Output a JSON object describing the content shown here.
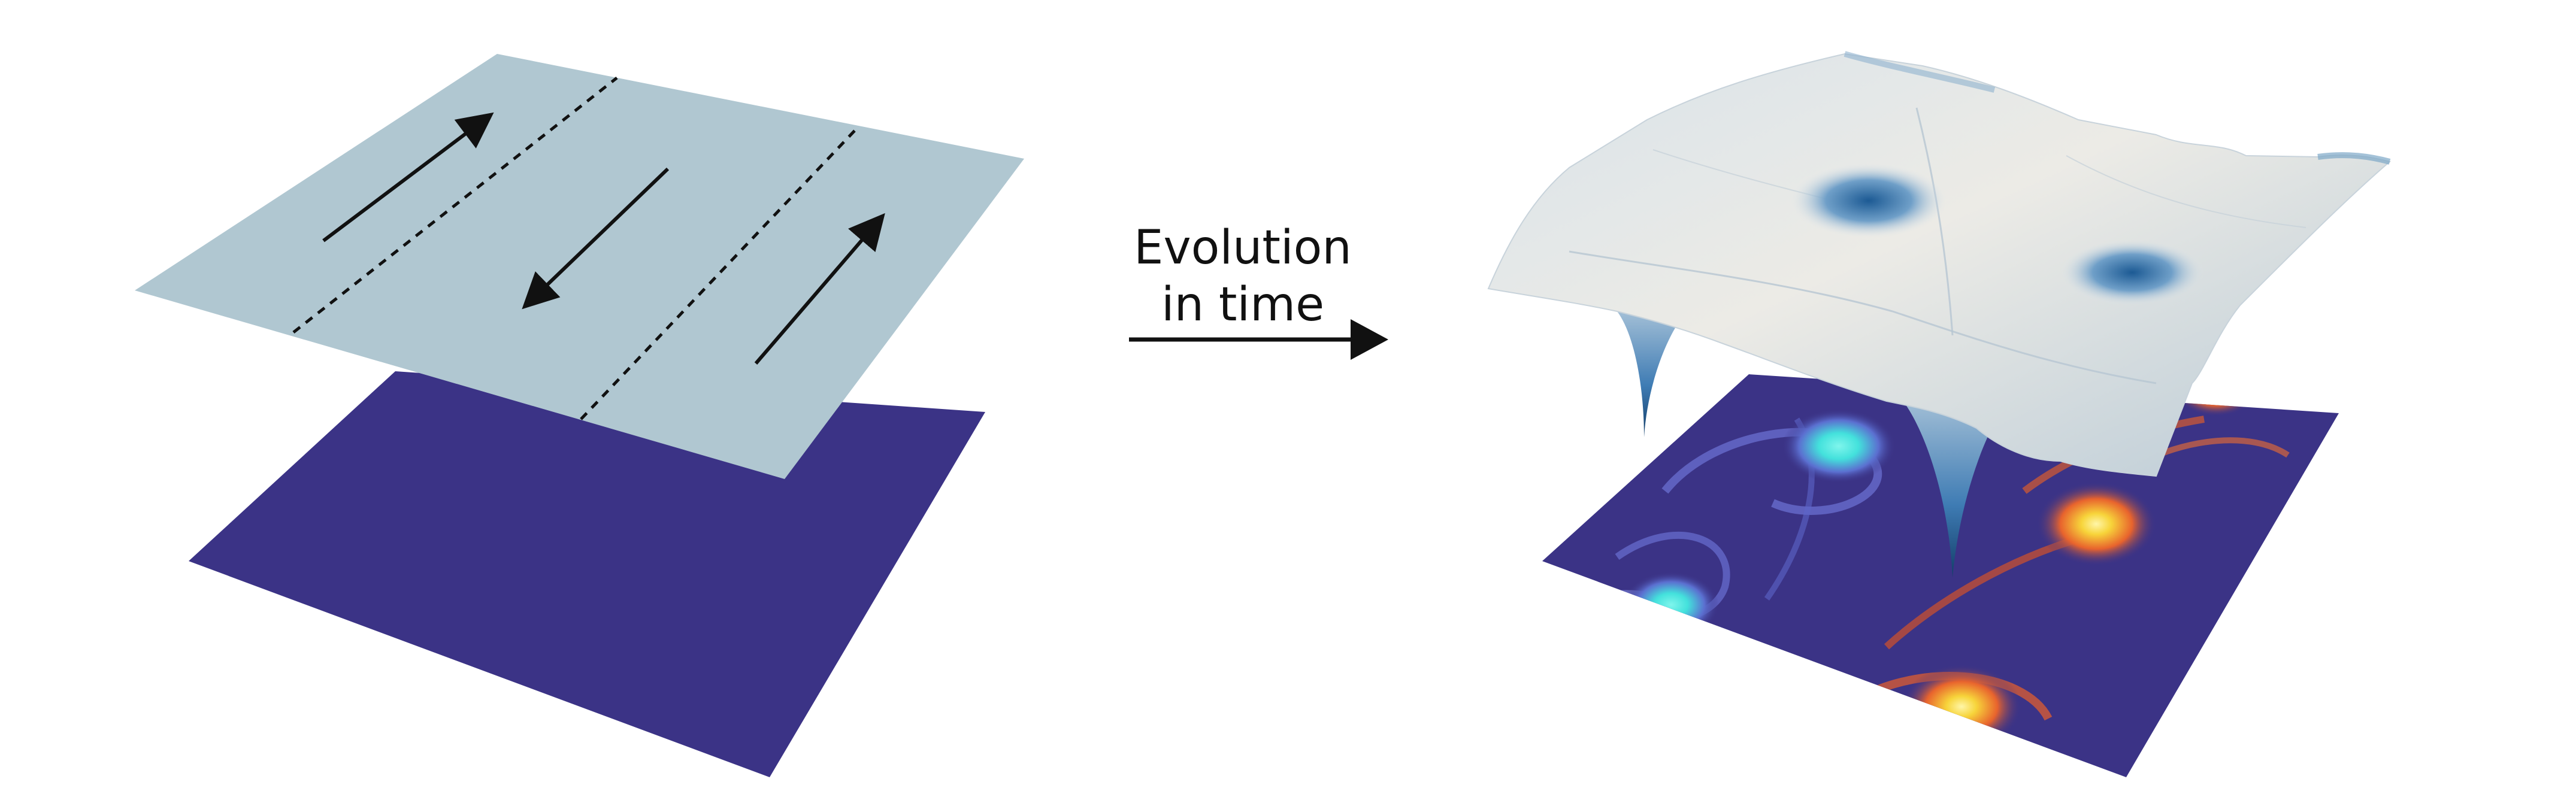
{
  "caption": {
    "line1": "Evolution",
    "line2": "in time"
  },
  "colors": {
    "background": "#ffffff",
    "base_plane": "#3b3386",
    "flow_plane": "#b0c7d1",
    "surface_light": "#e6e7e6",
    "surface_shadow": "#7ea8c8",
    "well_blue": "#2f6ea8",
    "vortex_cyan": "#43e1dc",
    "vortex_orange": "#e8632d",
    "vortex_yellow": "#f7d43a",
    "ink": "#111111"
  }
}
